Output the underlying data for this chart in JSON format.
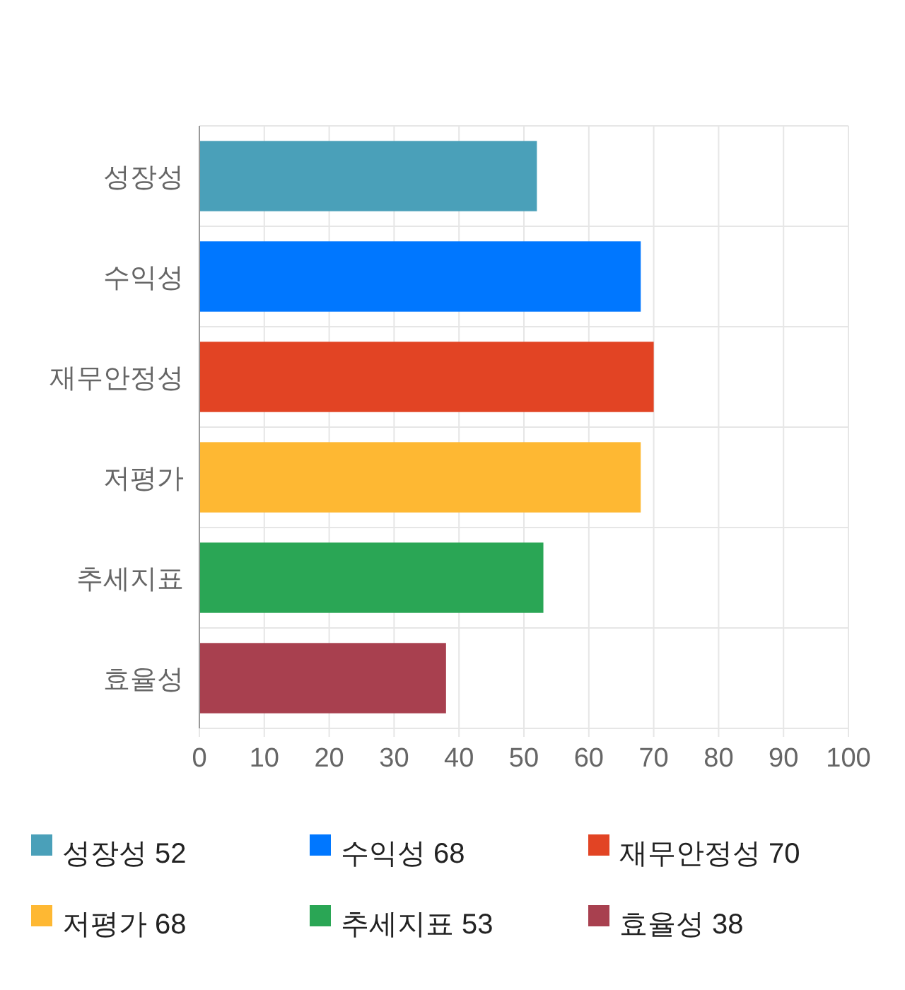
{
  "chart_data": {
    "type": "bar",
    "orientation": "horizontal",
    "stacked": true,
    "categories": [
      "성장성",
      "수익성",
      "재무안정성",
      "저평가",
      "추세지표",
      "효율성"
    ],
    "series": [
      {
        "name": "성장성 52",
        "color": "#4aa0b9",
        "values": [
          52,
          null,
          null,
          null,
          null,
          null
        ]
      },
      {
        "name": "수익성 68",
        "color": "#0077ff",
        "values": [
          null,
          68,
          null,
          null,
          null,
          null
        ]
      },
      {
        "name": "재무안정성 70",
        "color": "#e24424",
        "values": [
          null,
          null,
          70,
          null,
          null,
          null
        ]
      },
      {
        "name": "저평가 68",
        "color": "#feb833",
        "values": [
          null,
          null,
          null,
          68,
          null,
          null
        ]
      },
      {
        "name": "추세지표 53",
        "color": "#2aa655",
        "values": [
          null,
          null,
          null,
          null,
          53,
          null
        ]
      },
      {
        "name": "효율성 38",
        "color": "#a8404f",
        "values": [
          null,
          null,
          null,
          null,
          null,
          38
        ]
      }
    ],
    "xlim": [
      0,
      100
    ],
    "xticks": [
      0,
      10,
      20,
      30,
      40,
      50,
      60,
      70,
      80,
      90,
      100
    ],
    "grid": true,
    "legend": "bottom"
  }
}
